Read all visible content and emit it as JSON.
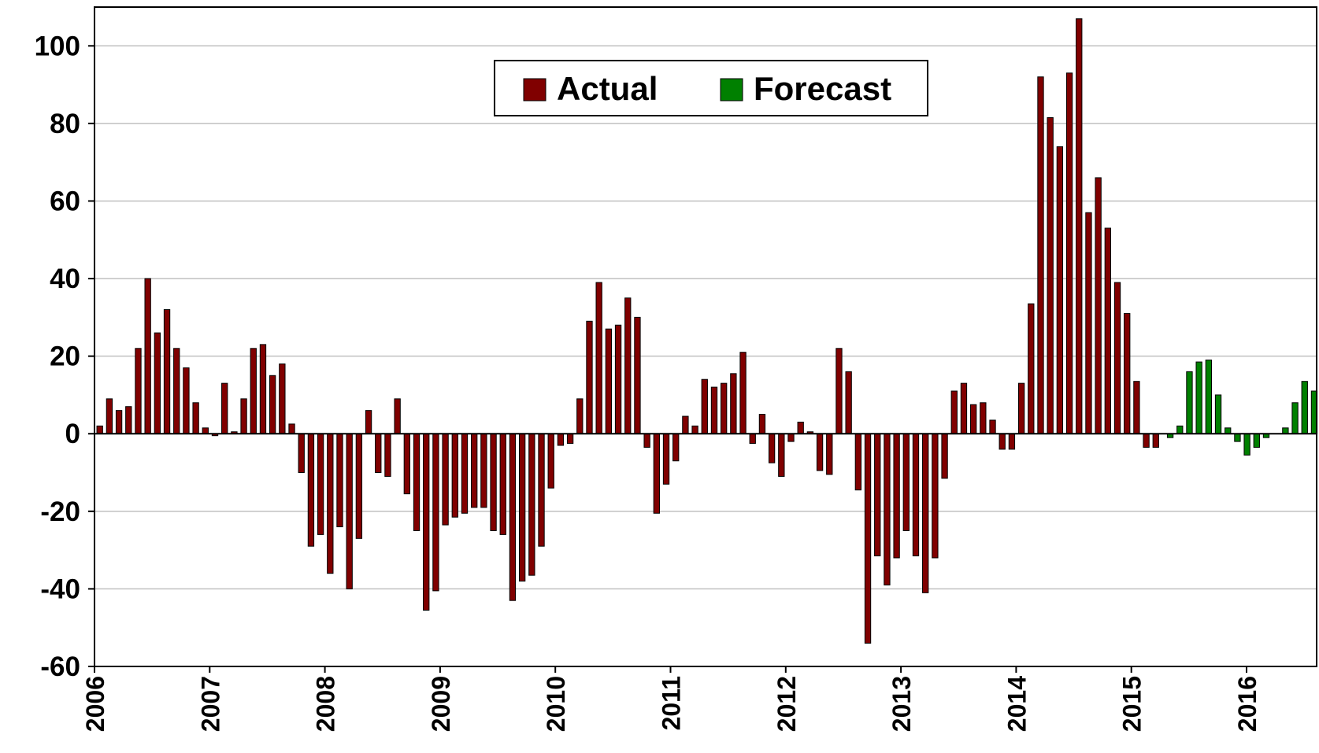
{
  "chart_data": {
    "type": "bar",
    "categories": [
      "2006",
      null,
      null,
      null,
      null,
      null,
      null,
      null,
      null,
      null,
      null,
      null,
      "2007",
      null,
      null,
      null,
      null,
      null,
      null,
      null,
      null,
      null,
      null,
      null,
      "2008",
      null,
      null,
      null,
      null,
      null,
      null,
      null,
      null,
      null,
      null,
      null,
      "2009",
      null,
      null,
      null,
      null,
      null,
      null,
      null,
      null,
      null,
      null,
      null,
      "2010",
      null,
      null,
      null,
      null,
      null,
      null,
      null,
      null,
      null,
      null,
      null,
      "2011",
      null,
      null,
      null,
      null,
      null,
      null,
      null,
      null,
      null,
      null,
      null,
      "2012",
      null,
      null,
      null,
      null,
      null,
      null,
      null,
      null,
      null,
      null,
      null,
      "2013",
      null,
      null,
      null,
      null,
      null,
      null,
      null,
      null,
      null,
      null,
      null,
      "2014",
      null,
      null,
      null,
      null,
      null,
      null,
      null,
      null,
      null,
      null,
      null,
      "2015",
      null,
      null,
      null,
      null,
      null,
      null,
      null,
      null,
      null,
      null,
      null,
      "2016",
      null,
      null,
      null,
      null,
      null,
      null
    ],
    "series": [
      {
        "name": "Actual",
        "color": "#800000",
        "values": [
          2,
          9,
          6,
          7,
          22,
          40,
          26,
          32,
          22,
          17,
          8,
          1.5,
          -0.5,
          13,
          0.5,
          9,
          22,
          23,
          15,
          18,
          2.5,
          -10,
          -29,
          -26,
          -36,
          -24,
          -40,
          -27,
          6,
          -10,
          -11,
          9,
          -15.5,
          -25,
          -45.5,
          -40.5,
          -23.5,
          -21.5,
          -20.5,
          -19,
          -19,
          -25,
          -26,
          -43,
          -38,
          -36.5,
          -29,
          -14,
          -3,
          -2.5,
          9,
          29,
          39,
          27,
          28,
          35,
          30,
          -3.5,
          -20.5,
          -13,
          -7,
          4.5,
          2,
          14,
          12,
          13,
          15.5,
          21,
          -2.5,
          5,
          -7.5,
          -11,
          -2,
          3,
          0.5,
          -9.5,
          -10.5,
          22,
          16,
          -14.5,
          -54,
          -31.5,
          -39,
          -32,
          -25,
          -31.5,
          -41,
          -32,
          -11.5,
          11,
          13,
          7.5,
          8,
          3.5,
          -4,
          -4,
          13,
          33.5,
          92,
          81.5,
          74,
          93,
          107,
          57,
          66,
          53,
          39,
          31,
          13.5,
          -3.5,
          -3.5,
          null,
          null,
          null,
          null,
          null,
          null,
          null,
          null,
          null,
          null,
          null,
          null,
          null,
          null,
          null,
          null
        ]
      },
      {
        "name": "Forecast",
        "color": "#008000",
        "values": [
          null,
          null,
          null,
          null,
          null,
          null,
          null,
          null,
          null,
          null,
          null,
          null,
          null,
          null,
          null,
          null,
          null,
          null,
          null,
          null,
          null,
          null,
          null,
          null,
          null,
          null,
          null,
          null,
          null,
          null,
          null,
          null,
          null,
          null,
          null,
          null,
          null,
          null,
          null,
          null,
          null,
          null,
          null,
          null,
          null,
          null,
          null,
          null,
          null,
          null,
          null,
          null,
          null,
          null,
          null,
          null,
          null,
          null,
          null,
          null,
          null,
          null,
          null,
          null,
          null,
          null,
          null,
          null,
          null,
          null,
          null,
          null,
          null,
          null,
          null,
          null,
          null,
          null,
          null,
          null,
          null,
          null,
          null,
          null,
          null,
          null,
          null,
          null,
          null,
          null,
          null,
          null,
          null,
          null,
          null,
          null,
          null,
          null,
          null,
          null,
          null,
          null,
          null,
          null,
          null,
          null,
          null,
          null,
          null,
          null,
          null,
          -1,
          2,
          16,
          18.5,
          19,
          10,
          1.5,
          -2,
          -5.5,
          -3.5,
          -1,
          0,
          1.5,
          8,
          13.5,
          11
        ]
      }
    ],
    "ylim": [
      -60,
      110
    ],
    "yticks": [
      -60,
      -40,
      -20,
      0,
      20,
      40,
      60,
      80,
      100
    ],
    "grid": true,
    "legend": "top"
  }
}
